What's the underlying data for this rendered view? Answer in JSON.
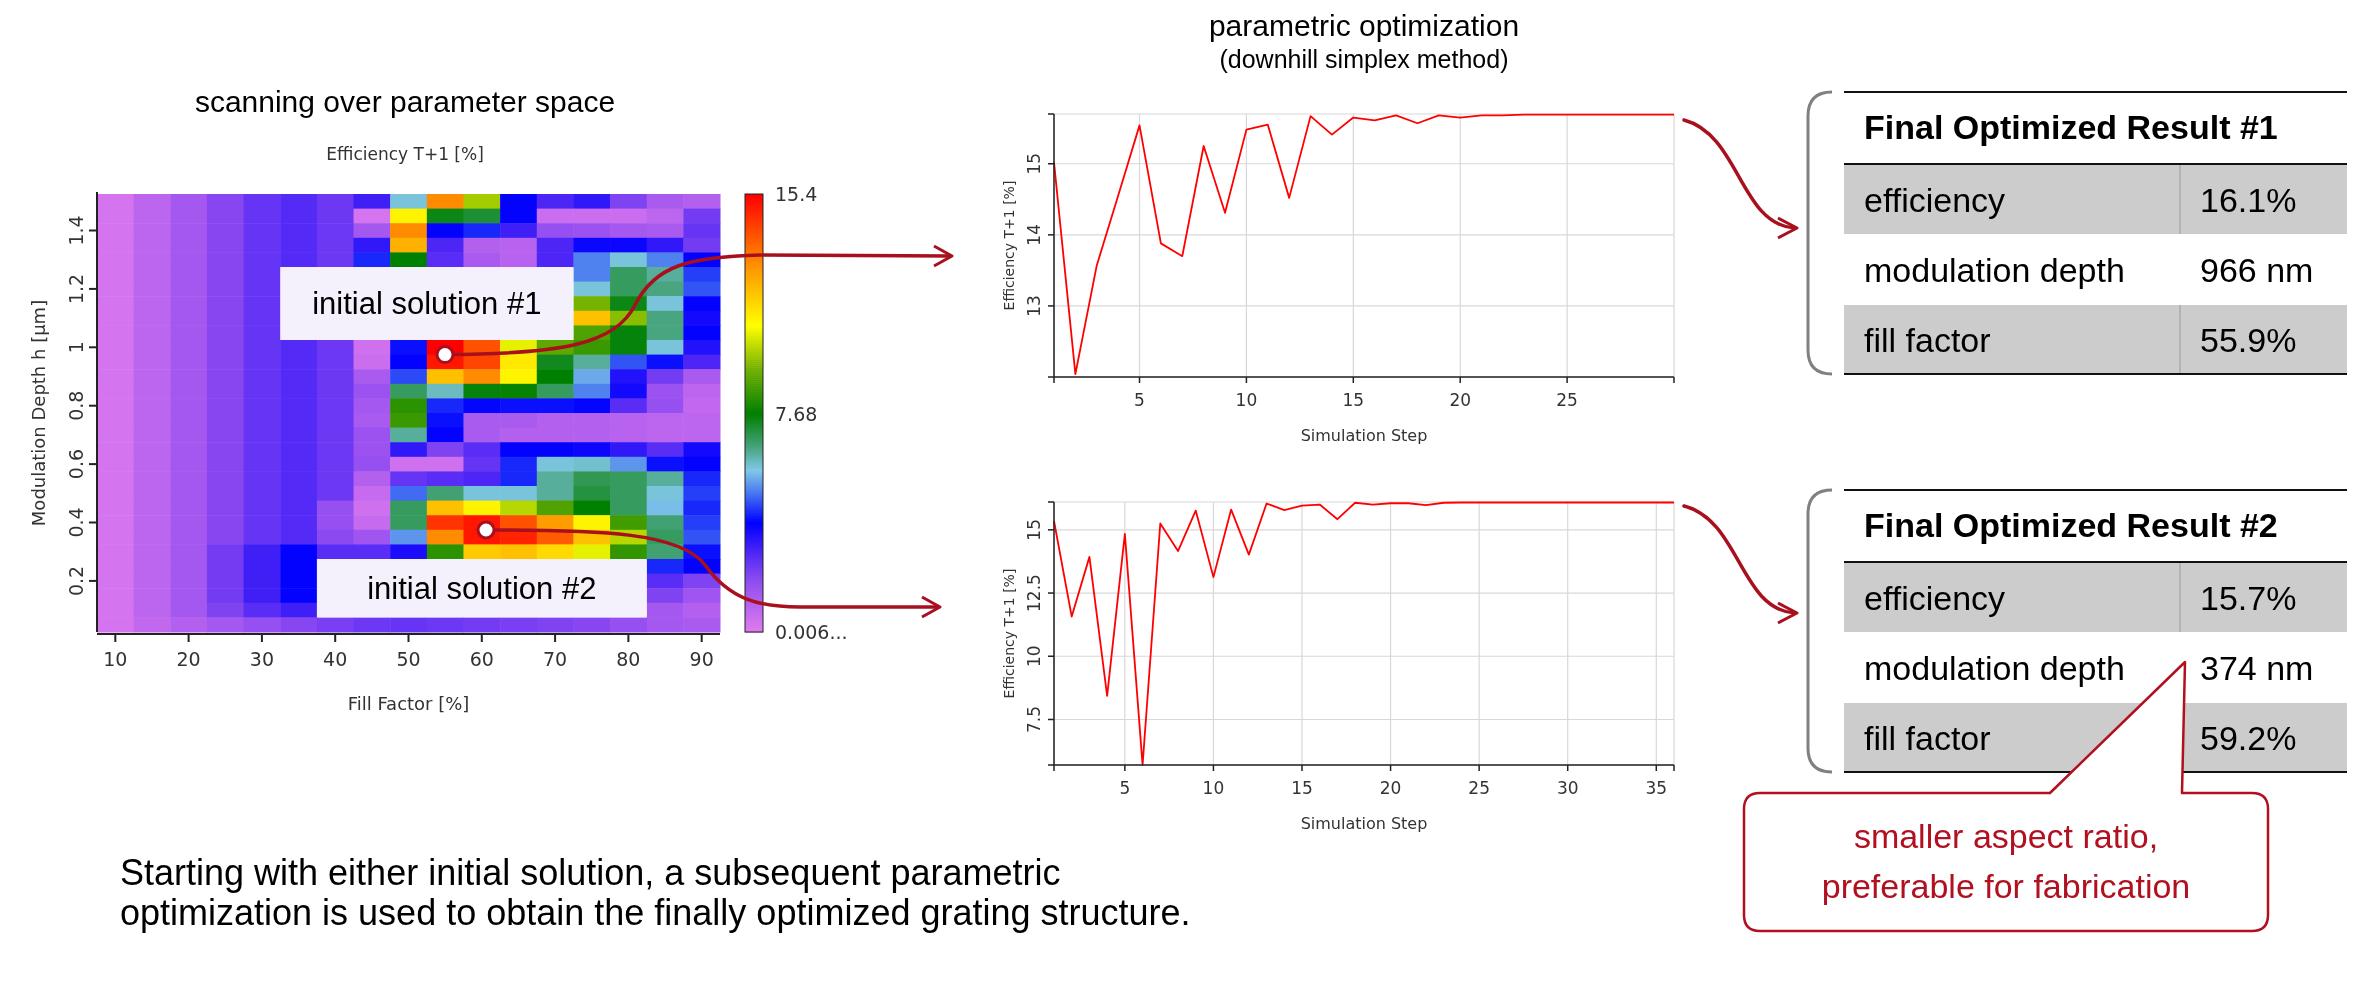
{
  "chart_data": [
    {
      "type": "heatmap",
      "title": "scanning over parameter space",
      "clabel": "Efficiency T+1  [%]",
      "xlabel": "Fill Factor [%]",
      "ylabel": "Modulation Depth h [µm]",
      "categories": [
        "10",
        null,
        "20",
        null,
        "30",
        null,
        "40",
        null,
        "50",
        null,
        "60",
        null,
        "70",
        null,
        "80",
        null,
        "90"
      ],
      "y_categories": [
        null,
        null,
        "1.4",
        null,
        null,
        null,
        "1.2",
        null,
        null,
        null,
        "1",
        null,
        null,
        null,
        "0.8",
        null,
        null,
        null,
        "0.6",
        null,
        null,
        null,
        "0.4",
        null,
        null,
        null,
        "0.2",
        null,
        null,
        null
      ],
      "cells": [
        [
          0.3,
          0.8,
          1.3,
          1.9,
          2.4,
          2.7,
          2.3,
          3.0,
          5.8,
          13,
          9.8,
          3.8,
          2.8,
          3.2,
          2.0,
          1.2,
          1.0
        ],
        [
          0.3,
          0.8,
          1.3,
          1.9,
          2.4,
          2.7,
          2.3,
          0.3,
          11,
          7.5,
          7.2,
          3.8,
          0.5,
          0.5,
          0.5,
          0.8,
          2.2
        ],
        [
          0.3,
          0.8,
          1.3,
          1.9,
          2.4,
          2.7,
          2.3,
          1.3,
          13,
          3.8,
          4.2,
          3.0,
          1.6,
          1.5,
          1.3,
          1.2,
          2.4
        ],
        [
          0.3,
          0.8,
          1.3,
          1.9,
          2.4,
          2.7,
          2.3,
          3.2,
          12.3,
          2.8,
          1.0,
          0.9,
          2.8,
          3.7,
          3.7,
          3.2,
          2.2
        ],
        [
          0.3,
          0.8,
          1.3,
          1.9,
          2.4,
          2.7,
          2.3,
          4.2,
          7.7,
          2.6,
          1.2,
          0.9,
          2.8,
          5.0,
          5.8,
          5.0,
          3.8
        ],
        [
          0.3,
          0.8,
          1.3,
          1.9,
          2.4,
          null,
          null,
          null,
          null,
          null,
          null,
          null,
          null,
          5.0,
          6.8,
          6.3,
          4.4
        ],
        [
          0.3,
          0.8,
          1.3,
          1.9,
          2.4,
          null,
          null,
          null,
          null,
          null,
          null,
          null,
          null,
          5.8,
          6.8,
          6.5,
          4.6
        ],
        [
          0.3,
          0.8,
          1.3,
          1.9,
          2.4,
          null,
          null,
          null,
          null,
          null,
          null,
          null,
          null,
          9.3,
          7.5,
          5.8,
          3.8
        ],
        [
          0.3,
          0.8,
          1.3,
          1.9,
          2.4,
          null,
          null,
          null,
          null,
          null,
          null,
          null,
          null,
          12,
          9.5,
          6.5,
          3.6
        ],
        [
          0.3,
          0.8,
          1.3,
          1.9,
          2.4,
          null,
          null,
          null,
          null,
          null,
          null,
          null,
          null,
          8.8,
          7.6,
          6.5,
          3.8
        ],
        [
          0.3,
          0.8,
          1.3,
          1.9,
          2.4,
          2.7,
          2.3,
          0.4,
          4.0,
          15.4,
          14,
          10.5,
          9.0,
          8.5,
          7.6,
          5.8,
          3.4
        ],
        [
          0.3,
          0.8,
          1.3,
          1.9,
          2.4,
          2.7,
          2.3,
          0.5,
          3.8,
          15,
          14.2,
          11.2,
          7.4,
          6.3,
          4.6,
          4.0,
          2.8
        ],
        [
          0.3,
          0.8,
          1.3,
          1.9,
          2.4,
          2.7,
          2.3,
          1.2,
          4.5,
          12,
          13,
          11,
          7.7,
          5.4,
          3.4,
          2.2,
          1.2
        ],
        [
          0.3,
          0.8,
          1.3,
          1.9,
          2.4,
          2.7,
          2.3,
          1.5,
          6.8,
          6.0,
          7.6,
          7.8,
          6.8,
          5.0,
          3.6,
          1.5,
          0.8
        ],
        [
          0.3,
          0.8,
          1.3,
          1.9,
          2.4,
          2.7,
          2.3,
          1.3,
          8.3,
          4.2,
          3.9,
          4.0,
          4.0,
          3.9,
          2.6,
          1.6,
          0.7
        ],
        [
          0.3,
          0.8,
          1.3,
          1.9,
          2.4,
          2.7,
          2.3,
          1.2,
          8.5,
          4.0,
          1.2,
          1.2,
          1.0,
          1.0,
          0.9,
          0.8,
          0.8
        ],
        [
          0.3,
          0.8,
          1.3,
          1.9,
          2.4,
          2.7,
          2.3,
          1.5,
          6.3,
          3.8,
          1.2,
          1.0,
          1.0,
          1.0,
          0.9,
          0.8,
          0.8
        ],
        [
          0.3,
          0.8,
          1.3,
          1.9,
          2.4,
          2.7,
          2.3,
          1.5,
          3.2,
          2.0,
          2.6,
          3.8,
          3.8,
          3.7,
          3.2,
          2.6,
          3.6
        ],
        [
          0.3,
          0.8,
          1.3,
          1.9,
          2.4,
          2.7,
          2.3,
          1.6,
          0.4,
          0.4,
          2.4,
          4.2,
          5.8,
          5.9,
          5.2,
          4.0,
          3.8
        ],
        [
          0.3,
          0.8,
          1.3,
          1.9,
          2.4,
          2.7,
          2.3,
          1.0,
          2.4,
          2.6,
          2.8,
          4.2,
          6.3,
          6.9,
          6.8,
          6.3,
          4.2
        ],
        [
          0.3,
          0.8,
          1.3,
          1.9,
          2.4,
          2.7,
          2.3,
          0.6,
          4.8,
          6.6,
          5.8,
          5.8,
          6.3,
          7.1,
          6.8,
          5.8,
          4.4
        ],
        [
          0.3,
          0.8,
          1.3,
          1.9,
          2.4,
          2.7,
          1.6,
          0.4,
          6.8,
          12,
          11,
          10,
          8.8,
          7.7,
          6.8,
          5.6,
          4.2
        ],
        [
          0.3,
          0.8,
          1.3,
          1.9,
          2.4,
          2.7,
          1.6,
          0.6,
          6.8,
          14.5,
          15,
          14,
          12.7,
          11,
          8.6,
          6.6,
          4.4
        ],
        [
          0.3,
          0.8,
          1.3,
          1.9,
          2.4,
          2.7,
          1.8,
          1.4,
          5.2,
          13,
          15,
          14.8,
          13.8,
          12,
          10,
          6.8,
          4.6
        ],
        [
          0.3,
          0.8,
          1.3,
          2.2,
          3.0,
          3.8,
          2.6,
          2.6,
          3.5,
          8.3,
          11.8,
          12,
          11.5,
          10.5,
          8.4,
          6.6,
          4.0
        ],
        [
          0.3,
          0.8,
          1.3,
          2.2,
          3.0,
          3.8,
          null,
          null,
          null,
          null,
          null,
          null,
          null,
          null,
          null,
          4.2,
          3.8
        ],
        [
          0.3,
          0.8,
          1.3,
          2.2,
          3.0,
          3.8,
          null,
          null,
          null,
          null,
          null,
          null,
          null,
          null,
          null,
          2.6,
          2.0
        ],
        [
          0.3,
          0.8,
          1.3,
          2.2,
          3.0,
          3.8,
          null,
          null,
          null,
          null,
          null,
          null,
          null,
          null,
          null,
          2.0,
          1.4
        ],
        [
          0.3,
          0.8,
          1.3,
          2.0,
          2.6,
          3.0,
          null,
          null,
          null,
          null,
          null,
          null,
          null,
          null,
          null,
          1.3,
          1.0
        ],
        [
          0.3,
          0.7,
          1.0,
          1.3,
          1.6,
          1.9,
          2.1,
          2.3,
          2.4,
          2.3,
          2.2,
          2.1,
          2.0,
          1.9,
          1.6,
          1.3,
          1.2
        ]
      ],
      "clim": [
        0.006,
        15.4
      ],
      "cticks": [
        {
          "value": 0.006,
          "label": "0.006..."
        },
        7.68,
        15.4
      ],
      "annotations": [
        "initial solution #1",
        "initial solution #2",
        "Starting with either initial solution, a subsequent parametric optimization is used to obtain the finally optimized grating structure."
      ]
    },
    {
      "type": "line",
      "title": "parametric optimization",
      "subtitle": "(downhill simplex method)",
      "xlabel": "Simulation Step",
      "ylabel": "Efficiency T+1  [%]",
      "x": [
        1,
        2,
        3,
        4,
        5,
        6,
        7,
        8,
        9,
        10,
        11,
        12,
        13,
        14,
        15,
        16,
        17,
        18,
        19,
        20,
        21,
        22,
        23,
        24,
        25,
        26,
        27,
        28,
        29,
        30
      ],
      "series": [
        {
          "color": "#ff0000",
          "values": [
            15.02,
            12.04,
            13.57,
            14.55,
            15.54,
            13.88,
            13.7,
            15.25,
            14.31,
            15.48,
            15.55,
            14.52,
            15.67,
            15.41,
            15.65,
            15.61,
            15.68,
            15.57,
            15.68,
            15.65,
            15.68,
            15.68,
            15.69,
            15.69,
            15.69,
            15.69,
            15.69,
            15.69,
            15.69,
            15.69
          ]
        }
      ],
      "xlim": [
        1,
        30
      ],
      "xticks": [
        {
          "value": 1,
          "label": null
        },
        5,
        10,
        15,
        20,
        25,
        {
          "value": 30,
          "label": null
        }
      ],
      "ylim": [
        12,
        15.7
      ],
      "yticks": [
        {
          "value": 12,
          "label": null
        },
        13,
        14,
        15,
        {
          "value": 15.7,
          "label": null
        }
      ],
      "grid": true
    },
    {
      "type": "line",
      "xlabel": "Simulation Step",
      "ylabel": "Efficiency T+1  [%]",
      "x": [
        1,
        2,
        3,
        4,
        5,
        6,
        7,
        8,
        9,
        10,
        11,
        12,
        13,
        14,
        15,
        16,
        17,
        18,
        19,
        20,
        21,
        22,
        23,
        24,
        25,
        26,
        27,
        28,
        29,
        30,
        31,
        32,
        33,
        34,
        35,
        36
      ],
      "series": [
        {
          "color": "#ff0000",
          "values": [
            15.35,
            11.57,
            13.93,
            8.43,
            14.84,
            5.7,
            15.25,
            14.16,
            15.76,
            13.13,
            15.8,
            14.02,
            16.04,
            15.78,
            15.96,
            16.0,
            15.42,
            16.07,
            16.0,
            16.05,
            16.05,
            15.98,
            16.07,
            16.08,
            16.08,
            16.08,
            16.08,
            16.08,
            16.08,
            16.08,
            16.08,
            16.08,
            16.08,
            16.08,
            16.08,
            16.08
          ]
        }
      ],
      "xlim": [
        1,
        36
      ],
      "xticks": [
        {
          "value": 1,
          "label": null
        },
        5,
        10,
        15,
        20,
        25,
        30,
        35,
        {
          "value": 36,
          "label": null
        }
      ],
      "ylim": [
        5.7,
        16.1
      ],
      "yticks": [
        {
          "value": 5.7,
          "label": null
        },
        7.5,
        10,
        12.5,
        15,
        {
          "value": 16.1,
          "label": null
        }
      ],
      "grid": true
    },
    {
      "type": "other",
      "title": "Final Optimized Result #1",
      "annotations": [
        "efficiency",
        "16.1%",
        "modulation depth",
        "966 nm",
        "fill factor",
        "55.9%"
      ]
    },
    {
      "type": "other",
      "title": "Final Optimized Result #2",
      "annotations": [
        "efficiency",
        "15.7%",
        "modulation depth",
        "374 nm",
        "fill factor",
        "59.2%",
        "smaller aspect ratio, preferable for fabrication"
      ]
    }
  ]
}
